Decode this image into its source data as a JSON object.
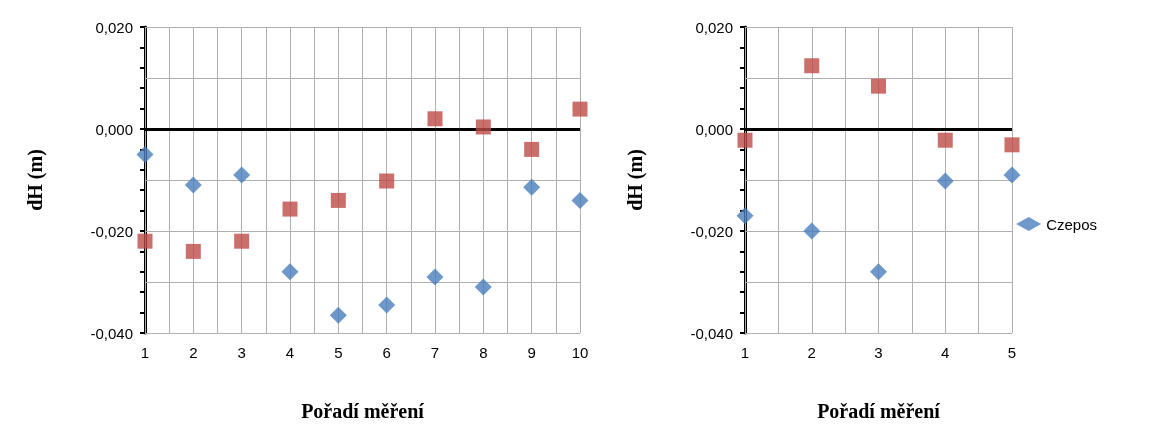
{
  "chart_data": [
    {
      "type": "scatter",
      "xlabel": "Pořadí měření",
      "ylabel": "dH (m)",
      "x": [
        1,
        2,
        3,
        4,
        5,
        6,
        7,
        8,
        9,
        10
      ],
      "series": [
        {
          "color": "#4a7ebb",
          "marker": "diamond",
          "values": [
            -0.005,
            -0.011,
            -0.009,
            -0.028,
            -0.0365,
            -0.0345,
            -0.029,
            -0.031,
            -0.0114,
            -0.014
          ]
        },
        {
          "color": "#be4b48",
          "marker": "square",
          "values": [
            -0.022,
            -0.024,
            -0.022,
            -0.0157,
            -0.014,
            -0.0102,
            0.002,
            0.0004,
            -0.004,
            0.0039
          ]
        }
      ],
      "xlim": [
        1,
        10
      ],
      "xticks": [
        1,
        {
          "value": 1.5,
          "label": null
        },
        2,
        {
          "value": 2.5,
          "label": null
        },
        3,
        {
          "value": 3.5,
          "label": null
        },
        4,
        {
          "value": 4.5,
          "label": null
        },
        5,
        {
          "value": 5.5,
          "label": null
        },
        6,
        {
          "value": 6.5,
          "label": null
        },
        7,
        {
          "value": 7.5,
          "label": null
        },
        8,
        {
          "value": 8.5,
          "label": null
        },
        9,
        {
          "value": 9.5,
          "label": null
        },
        10
      ],
      "ylim": [
        -0.04,
        0.02
      ],
      "yticks": [
        {
          "value": -0.04,
          "label": "-0,040"
        },
        {
          "value": -0.036,
          "label": null
        },
        {
          "value": -0.032,
          "label": null
        },
        {
          "value": -0.028,
          "label": null
        },
        {
          "value": -0.024,
          "label": null
        },
        {
          "value": -0.02,
          "label": "-0,020"
        },
        {
          "value": -0.016,
          "label": null
        },
        {
          "value": -0.012,
          "label": null
        },
        {
          "value": -0.008,
          "label": null
        },
        {
          "value": -0.004,
          "label": null
        },
        {
          "value": 0,
          "label": "0,000"
        },
        {
          "value": 0.004,
          "label": null
        },
        {
          "value": 0.008,
          "label": null
        },
        {
          "value": 0.012,
          "label": null
        },
        {
          "value": 0.016,
          "label": null
        },
        {
          "value": 0.02,
          "label": "0,020"
        }
      ],
      "ref_lines": [
        {
          "axis": "y",
          "value": 0,
          "color": "#000000"
        }
      ],
      "grid": true,
      "legend": false
    },
    {
      "type": "scatter",
      "xlabel": "Pořadí měření",
      "ylabel": "dH (m)",
      "x": [
        1,
        2,
        3,
        4,
        5
      ],
      "series": [
        {
          "name": "Czepos",
          "color": "#4a7ebb",
          "marker": "diamond",
          "values": [
            -0.017,
            -0.02,
            -0.028,
            -0.0102,
            -0.009
          ]
        },
        {
          "color": "#be4b48",
          "marker": "square",
          "values": [
            -0.0022,
            0.0124,
            0.0084,
            -0.0022,
            -0.0031
          ]
        }
      ],
      "xlim": [
        1,
        5
      ],
      "xticks": [
        1,
        {
          "value": 1.5,
          "label": null
        },
        2,
        {
          "value": 2.5,
          "label": null
        },
        3,
        {
          "value": 3.5,
          "label": null
        },
        4,
        {
          "value": 4.5,
          "label": null
        },
        5
      ],
      "ylim": [
        -0.04,
        0.02
      ],
      "yticks": [
        {
          "value": -0.04,
          "label": "-0,040"
        },
        {
          "value": -0.036,
          "label": null
        },
        {
          "value": -0.032,
          "label": null
        },
        {
          "value": -0.028,
          "label": null
        },
        {
          "value": -0.024,
          "label": null
        },
        {
          "value": -0.02,
          "label": "-0,020"
        },
        {
          "value": -0.016,
          "label": null
        },
        {
          "value": -0.012,
          "label": null
        },
        {
          "value": -0.008,
          "label": null
        },
        {
          "value": -0.004,
          "label": null
        },
        {
          "value": 0,
          "label": "0,000"
        },
        {
          "value": 0.004,
          "label": null
        },
        {
          "value": 0.008,
          "label": null
        },
        {
          "value": 0.012,
          "label": null
        },
        {
          "value": 0.016,
          "label": null
        },
        {
          "value": 0.02,
          "label": "0,020"
        }
      ],
      "ref_lines": [
        {
          "axis": "y",
          "value": 0,
          "color": "#000000"
        }
      ],
      "grid": true,
      "legend": "right"
    }
  ]
}
